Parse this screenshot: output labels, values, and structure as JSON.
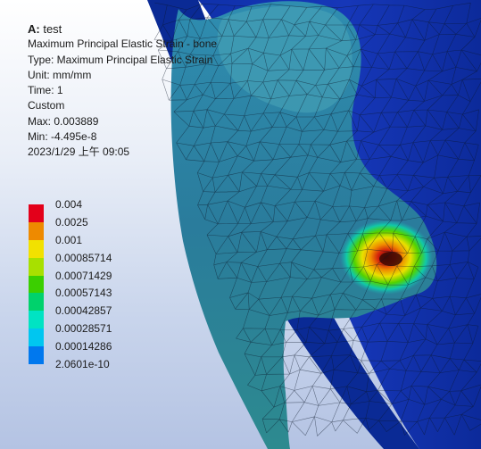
{
  "result": {
    "title_bold": "A:",
    "title_rest": " test",
    "name": "Maximum Principal Elastic Strain - bone",
    "type": "Type: Maximum Principal Elastic Strain",
    "unit": "Unit: mm/mm",
    "time": "Time: 1",
    "range_mode": "Custom",
    "max": "Max: 0.003889",
    "min": "Min: -4.495e-8",
    "timestamp": "2023/1/29 上午 09:05"
  },
  "legend": {
    "levels": [
      {
        "value": "0.004",
        "color": "#e3001a"
      },
      {
        "value": "0.0025",
        "color": "#ee8a00"
      },
      {
        "value": "0.001",
        "color": "#f2e100"
      },
      {
        "value": "0.00085714",
        "color": "#a8e000"
      },
      {
        "value": "0.00071429",
        "color": "#3bcf00"
      },
      {
        "value": "0.00057143",
        "color": "#00d26c"
      },
      {
        "value": "0.00042857",
        "color": "#00e3c3"
      },
      {
        "value": "0.00028571",
        "color": "#00c6f0"
      },
      {
        "value": "0.00014286",
        "color": "#0078ee"
      },
      {
        "value": "2.0601e-10",
        "color": "#0024c8"
      }
    ]
  },
  "colors": {
    "low_strain": "#0a2fb4",
    "mid_strain": "#2c7fa2",
    "hot_spot": "#e3001a",
    "background_top": "#ffffff",
    "background_bottom": "#b4c3e3"
  }
}
